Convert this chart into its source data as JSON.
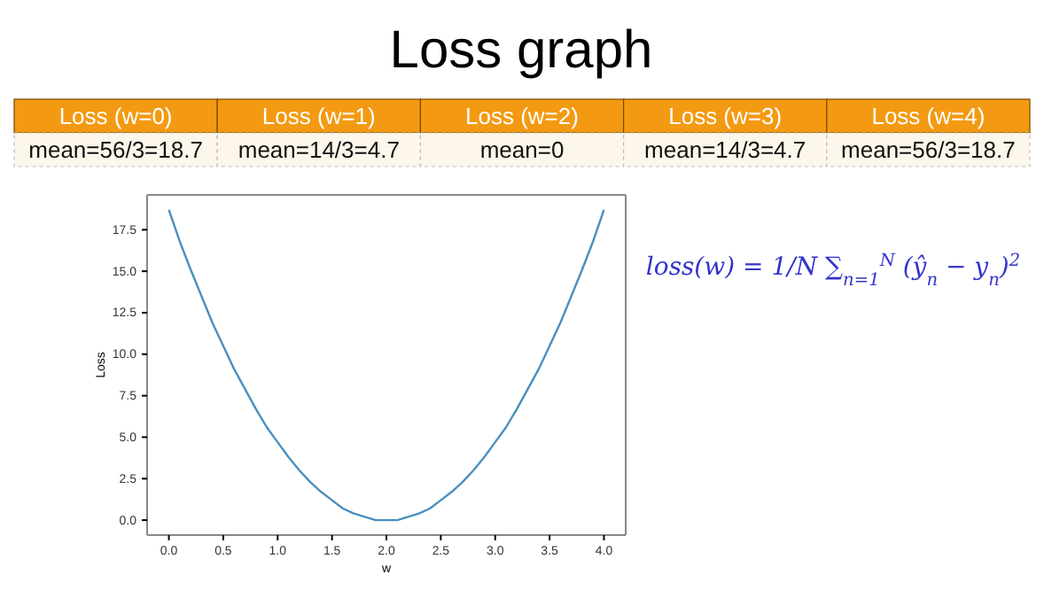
{
  "chart_data": {
    "type": "line",
    "title": "Loss graph",
    "xlabel": "w",
    "ylabel": "Loss",
    "x": [
      0,
      0.1,
      0.2,
      0.3,
      0.4,
      0.5,
      0.6,
      0.7,
      0.8,
      0.9,
      1,
      1.1,
      1.2,
      1.3,
      1.4,
      1.5,
      1.6,
      1.7,
      1.8,
      1.9,
      2,
      2.1,
      2.2,
      2.3,
      2.4,
      2.5,
      2.6,
      2.7,
      2.8,
      2.9,
      3,
      3.1,
      3.2,
      3.3,
      3.4,
      3.5,
      3.6,
      3.7,
      3.8,
      3.9,
      4
    ],
    "series": [
      {
        "color": "#4a8fc0",
        "values": [
          18.7,
          16.8,
          15.1,
          13.5,
          11.9,
          10.5,
          9.1,
          7.9,
          6.7,
          5.6,
          4.7,
          3.8,
          3.0,
          2.3,
          1.7,
          1.2,
          0.7,
          0.4,
          0.2,
          0.0,
          0,
          0.0,
          0.2,
          0.4,
          0.7,
          1.2,
          1.7,
          2.3,
          3.0,
          3.8,
          4.7,
          5.6,
          6.7,
          7.9,
          9.1,
          10.5,
          11.9,
          13.5,
          15.1,
          16.8,
          18.7
        ]
      }
    ],
    "xlim": [
      -0.2,
      4.2
    ],
    "ylim": [
      -0.9,
      19.6
    ],
    "xticks": [
      {
        "value": 0,
        "label": "0.0"
      },
      {
        "value": 0.5,
        "label": "0.5"
      },
      {
        "value": 1,
        "label": "1.0"
      },
      {
        "value": 1.5,
        "label": "1.5"
      },
      {
        "value": 2,
        "label": "2.0"
      },
      {
        "value": 2.5,
        "label": "2.5"
      },
      {
        "value": 3,
        "label": "3.0"
      },
      {
        "value": 3.5,
        "label": "3.5"
      },
      {
        "value": 4,
        "label": "4.0"
      }
    ],
    "yticks": [
      {
        "value": 0,
        "label": "0.0"
      },
      {
        "value": 2.5,
        "label": "2.5"
      },
      {
        "value": 5,
        "label": "5.0"
      },
      {
        "value": 7.5,
        "label": "7.5"
      },
      {
        "value": 10,
        "label": "10.0"
      },
      {
        "value": 12.5,
        "label": "12.5"
      },
      {
        "value": 15,
        "label": "15.0"
      },
      {
        "value": 17.5,
        "label": "17.5"
      }
    ],
    "grid": false,
    "marker": "none",
    "line_style": "solid",
    "annotations": [
      "Loss (w=0)",
      "Loss (w=1)",
      "Loss (w=2)",
      "Loss (w=3)",
      "Loss (w=4)",
      "mean=56/3=18.7",
      "mean=14/3=4.7",
      "mean=0",
      "mean=14/3=4.7",
      "mean=56/3=18.7",
      "loss(w) = 1/N ∑$_{n=1}$$^{N}$ (ŷ$_{n}$ − y$_{n}$)$^{2}$"
    ]
  }
}
